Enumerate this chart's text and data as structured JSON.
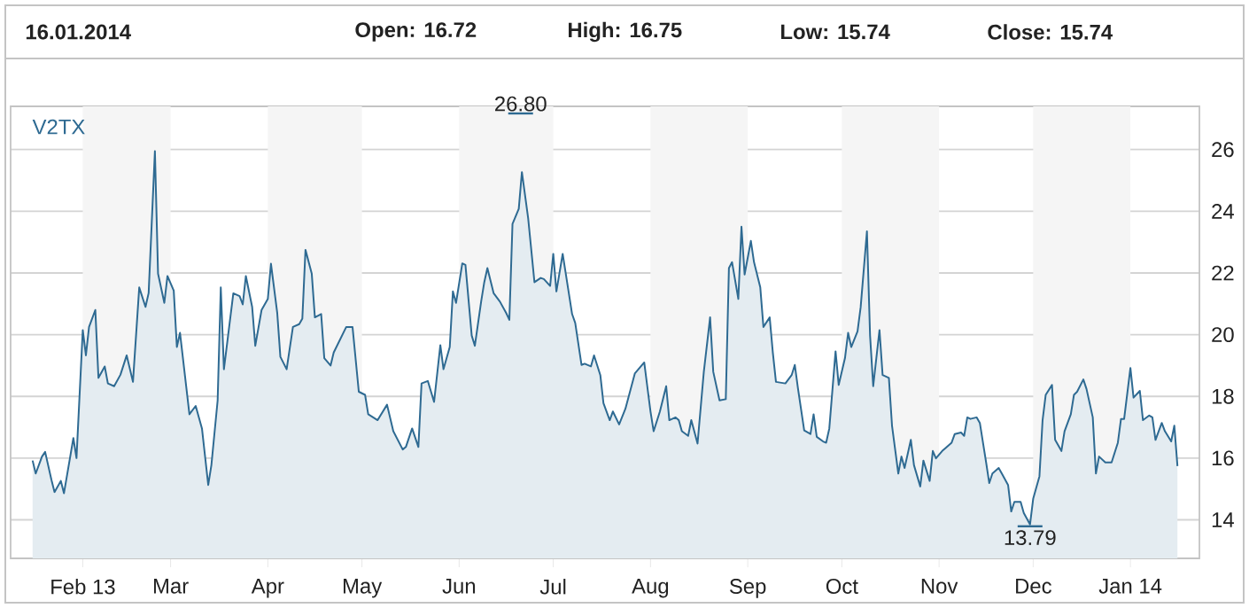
{
  "chart_data": {
    "type": "area",
    "annotations": [
      "16.01.2014",
      "**Open:** **16.72**",
      "**High:** **16.75**",
      "**Low:** **15.74**",
      "**Close:** **15.74**",
      "26.80",
      {
        "text": "13.79",
        "x": "2013-11-30",
        "y": 13.79
      }
    ],
    "x": [
      "2013-01-16",
      "2013-01-17",
      "2013-01-19",
      "2013-01-20",
      "2013-01-22",
      "2013-01-23",
      "2013-01-25",
      "2013-01-26",
      "2013-01-28",
      "2013-01-29",
      "2013-01-30",
      "2013-02-01",
      "2013-02-02",
      "2013-02-03",
      "2013-02-05",
      "2013-02-06",
      "2013-02-08",
      "2013-02-09",
      "2013-02-11",
      "2013-02-13",
      "2013-02-15",
      "2013-02-17",
      "2013-02-19",
      "2013-02-21",
      "2013-02-22",
      "2013-02-24",
      "2013-02-25",
      "2013-02-27",
      "2013-02-28",
      "2013-03-02",
      "2013-03-03",
      "2013-03-04",
      "2013-03-07",
      "2013-03-09",
      "2013-03-11",
      "2013-03-13",
      "2013-03-14",
      "2013-03-16",
      "2013-03-17",
      "2013-03-18",
      "2013-03-21",
      "2013-03-23",
      "2013-03-24",
      "2013-03-25",
      "2013-03-27",
      "2013-03-28",
      "2013-03-30",
      "2013-04-01",
      "2013-04-02",
      "2013-04-04",
      "2013-04-05",
      "2013-04-07",
      "2013-04-09",
      "2013-04-11",
      "2013-04-12",
      "2013-04-13",
      "2013-04-15",
      "2013-04-16",
      "2013-04-18",
      "2013-04-19",
      "2013-04-21",
      "2013-04-22",
      "2013-04-26",
      "2013-04-28",
      "2013-04-30",
      "2013-05-02",
      "2013-05-03",
      "2013-05-06",
      "2013-05-09",
      "2013-05-11",
      "2013-05-14",
      "2013-05-15",
      "2013-05-17",
      "2013-05-19",
      "2013-05-20",
      "2013-05-22",
      "2013-05-24",
      "2013-05-26",
      "2013-05-27",
      "2013-05-29",
      "2013-05-30",
      "2013-05-31",
      "2013-06-02",
      "2013-06-03",
      "2013-06-05",
      "2013-06-06",
      "2013-06-08",
      "2013-06-09",
      "2013-06-10",
      "2013-06-12",
      "2013-06-14",
      "2013-06-16",
      "2013-06-17",
      "2013-06-18",
      "2013-06-20",
      "2013-06-21",
      "2013-06-23",
      "2013-06-25",
      "2013-06-27",
      "2013-06-28",
      "2013-06-30",
      "2013-07-01",
      "2013-07-02",
      "2013-07-04",
      "2013-07-07",
      "2013-07-08",
      "2013-07-10",
      "2013-07-11",
      "2013-07-13",
      "2013-07-14",
      "2013-07-16",
      "2013-07-17",
      "2013-07-19",
      "2013-07-20",
      "2013-07-22",
      "2013-07-24",
      "2013-07-27",
      "2013-07-30",
      "2013-08-01",
      "2013-08-02",
      "2013-08-04",
      "2013-08-06",
      "2013-08-07",
      "2013-08-09",
      "2013-08-10",
      "2013-08-11",
      "2013-08-13",
      "2013-08-14",
      "2013-08-16",
      "2013-08-18",
      "2013-08-20",
      "2013-08-21",
      "2013-08-23",
      "2013-08-25",
      "2013-08-26",
      "2013-08-27",
      "2013-08-29",
      "2013-08-30",
      "2013-08-31",
      "2013-09-02",
      "2013-09-03",
      "2013-09-05",
      "2013-09-06",
      "2013-09-08",
      "2013-09-09",
      "2013-09-10",
      "2013-09-13",
      "2013-09-15",
      "2013-09-16",
      "2013-09-17",
      "2013-09-19",
      "2013-09-21",
      "2013-09-22",
      "2013-09-23",
      "2013-09-25",
      "2013-09-26",
      "2013-09-27",
      "2013-09-29",
      "2013-09-30",
      "2013-10-02",
      "2013-10-03",
      "2013-10-04",
      "2013-10-06",
      "2013-10-07",
      "2013-10-09",
      "2013-10-10",
      "2013-10-11",
      "2013-10-13",
      "2013-10-14",
      "2013-10-16",
      "2013-10-17",
      "2013-10-19",
      "2013-10-20",
      "2013-10-21",
      "2013-10-23",
      "2013-10-24",
      "2013-10-26",
      "2013-10-27",
      "2013-10-29",
      "2013-10-30",
      "2013-10-31",
      "2013-11-02",
      "2013-11-03",
      "2013-11-05",
      "2013-11-06",
      "2013-11-08",
      "2013-11-09",
      "2013-11-10",
      "2013-11-11",
      "2013-11-13",
      "2013-11-14",
      "2013-11-16",
      "2013-11-17",
      "2013-11-18",
      "2013-11-20",
      "2013-11-21",
      "2013-11-23",
      "2013-11-24",
      "2013-11-25",
      "2013-11-27",
      "2013-11-28",
      "2013-11-30",
      "2013-12-01",
      "2013-12-03",
      "2013-12-04",
      "2013-12-05",
      "2013-12-07",
      "2013-12-08",
      "2013-12-10",
      "2013-12-11",
      "2013-12-13",
      "2013-12-14",
      "2013-12-15",
      "2013-12-17",
      "2013-12-18",
      "2013-12-20",
      "2013-12-21",
      "2013-12-22",
      "2013-12-24",
      "2013-12-26",
      "2013-12-28",
      "2013-12-29",
      "2013-12-30",
      "2014-01-01",
      "2014-01-02",
      "2014-01-04",
      "2014-01-05",
      "2014-01-07",
      "2014-01-08",
      "2014-01-09",
      "2014-01-11",
      "2014-01-12",
      "2014-01-14",
      "2014-01-15",
      "2014-01-16"
    ],
    "series": [
      {
        "name": "V2TX",
        "color": "#2e6a92",
        "values": [
          15.92,
          15.5,
          16.05,
          16.2,
          15.3,
          14.9,
          15.26,
          14.86,
          16.05,
          16.65,
          16.0,
          20.15,
          19.33,
          20.25,
          20.8,
          18.6,
          18.97,
          18.42,
          18.33,
          18.7,
          19.33,
          18.47,
          21.53,
          20.9,
          21.35,
          25.95,
          21.98,
          21.03,
          21.9,
          21.43,
          19.6,
          20.06,
          17.42,
          17.69,
          16.96,
          15.13,
          15.77,
          17.87,
          21.53,
          18.88,
          21.34,
          21.25,
          20.98,
          21.9,
          20.9,
          19.64,
          20.8,
          21.16,
          22.3,
          20.7,
          19.28,
          18.88,
          20.25,
          20.34,
          20.52,
          22.75,
          21.98,
          20.56,
          20.67,
          19.24,
          19.0,
          19.42,
          20.25,
          20.25,
          18.15,
          18.05,
          17.42,
          17.23,
          17.73,
          16.87,
          16.28,
          16.36,
          16.96,
          16.36,
          18.42,
          18.5,
          17.82,
          19.66,
          18.88,
          19.6,
          21.4,
          21.03,
          22.31,
          22.26,
          19.97,
          19.64,
          21.07,
          21.7,
          22.16,
          21.34,
          21.07,
          20.7,
          20.48,
          23.59,
          24.08,
          25.27,
          23.77,
          21.7,
          21.84,
          21.8,
          21.58,
          22.62,
          21.4,
          22.62,
          20.67,
          20.38,
          19.02,
          19.06,
          18.97,
          19.33,
          18.69,
          17.78,
          17.23,
          17.51,
          17.09,
          17.6,
          18.74,
          19.1,
          17.51,
          16.87,
          17.51,
          18.33,
          17.23,
          17.32,
          17.23,
          16.87,
          16.72,
          17.23,
          16.47,
          18.8,
          20.56,
          18.8,
          17.87,
          17.91,
          22.16,
          22.35,
          21.16,
          23.5,
          21.95,
          23.04,
          22.35,
          21.53,
          20.25,
          20.56,
          19.42,
          18.47,
          18.42,
          18.69,
          19.02,
          18.27,
          16.9,
          16.78,
          17.42,
          16.69,
          16.54,
          16.5,
          16.96,
          19.46,
          18.37,
          19.24,
          20.06,
          19.6,
          20.11,
          20.89,
          23.35,
          19.97,
          18.33,
          20.15,
          18.69,
          18.6,
          17.05,
          15.5,
          16.05,
          15.68,
          16.59,
          15.77,
          15.08,
          15.92,
          15.26,
          16.23,
          15.99,
          16.23,
          16.32,
          16.5,
          16.78,
          16.83,
          16.72,
          17.32,
          17.27,
          17.32,
          17.14,
          15.86,
          15.19,
          15.5,
          15.68,
          15.5,
          15.13,
          14.27,
          14.58,
          14.58,
          14.22,
          13.85,
          14.68,
          15.41,
          17.23,
          18.05,
          18.37,
          16.59,
          16.23,
          16.87,
          17.42,
          18.05,
          18.15,
          18.55,
          18.24,
          17.32,
          15.5,
          16.05,
          15.86,
          15.86,
          16.5,
          17.27,
          17.27,
          18.92,
          17.96,
          18.18,
          17.23,
          17.38,
          17.32,
          16.59,
          17.14,
          16.87,
          16.54,
          17.05,
          15.74
        ]
      }
    ],
    "xlim": [
      "2013-01-09",
      "2014-01-23"
    ],
    "xticks": [
      {
        "value": "2013-02-01",
        "label": "Feb 13"
      },
      {
        "value": "2013-03-01",
        "label": "Mar"
      },
      {
        "value": "2013-04-01",
        "label": "Apr"
      },
      {
        "value": "2013-05-01",
        "label": "May"
      },
      {
        "value": "2013-06-01",
        "label": "Jun"
      },
      {
        "value": "2013-07-01",
        "label": "Jul"
      },
      {
        "value": "2013-08-01",
        "label": "Aug"
      },
      {
        "value": "2013-09-01",
        "label": "Sep"
      },
      {
        "value": "2013-10-01",
        "label": "Oct"
      },
      {
        "value": "2013-11-01",
        "label": "Nov"
      },
      {
        "value": "2013-12-01",
        "label": "Dec"
      },
      {
        "value": "2014-01-01",
        "label": "Jan 14"
      }
    ],
    "ylim": [
      12.75,
      27.4
    ],
    "yticks": [
      14,
      16,
      18,
      20,
      22,
      24,
      26
    ],
    "grid": "y",
    "bands": [
      {
        "axis": "x",
        "from": "2013-02-01",
        "to": "2013-03-01",
        "color": "#f5f5f5"
      },
      {
        "axis": "x",
        "from": "2013-04-01",
        "to": "2013-05-01",
        "color": "#f5f5f5"
      },
      {
        "axis": "x",
        "from": "2013-06-01",
        "to": "2013-07-01",
        "color": "#f5f5f5"
      },
      {
        "axis": "x",
        "from": "2013-08-01",
        "to": "2013-09-01",
        "color": "#f5f5f5"
      },
      {
        "axis": "x",
        "from": "2013-10-01",
        "to": "2013-11-01",
        "color": "#f5f5f5"
      },
      {
        "axis": "x",
        "from": "2013-12-01",
        "to": "2014-01-01",
        "color": "#f5f5f5"
      }
    ]
  }
}
